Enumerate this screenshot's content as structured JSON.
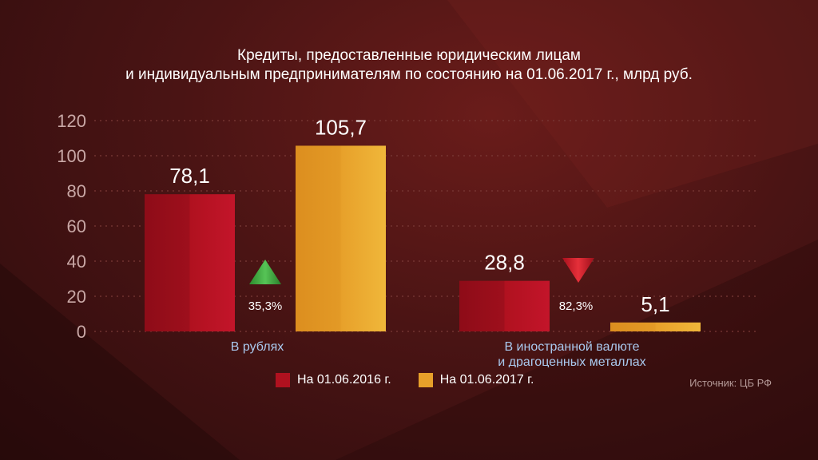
{
  "title_line1": "Кредиты, предоставленные юридическим лицам",
  "title_line2": "и индивидуальным предпринимателям по состоянию на 01.06.2017 г., млрд руб.",
  "source": "Источник: ЦБ РФ",
  "colors": {
    "series_2016": "#b0111f",
    "series_2017": "#e7a02a",
    "axis_text": "#c9a8a6",
    "grid": "#7a3a37",
    "category_text": "#a9c9ee",
    "up_arrow": "#3fa43f",
    "down_arrow": "#d4202a"
  },
  "chart_data": {
    "type": "bar",
    "title": "Кредиты, предоставленные юридическим лицам и индивидуальным предпринимателям по состоянию на 01.06.2017 г., млрд руб.",
    "categories": [
      "В рублях",
      "В иностранной валюте и драгоценных металлах"
    ],
    "category_lines": [
      [
        "В рублях"
      ],
      [
        "В иностранной валюте",
        "и драгоценных металлах"
      ]
    ],
    "series": [
      {
        "name": "На 01.06.2016 г.",
        "values": [
          78.1,
          28.8
        ],
        "labels": [
          "78,1",
          "28,8"
        ]
      },
      {
        "name": "На 01.06.2017 г.",
        "values": [
          105.7,
          5.1
        ],
        "labels": [
          "105,7",
          "5,1"
        ]
      }
    ],
    "changes": [
      {
        "direction": "up",
        "label": "35,3%"
      },
      {
        "direction": "down",
        "label": "82,3%"
      }
    ],
    "ylim": [
      0,
      120
    ],
    "yticks": [
      0,
      20,
      40,
      60,
      80,
      100,
      120
    ],
    "grid": true,
    "legend": "bottom"
  }
}
